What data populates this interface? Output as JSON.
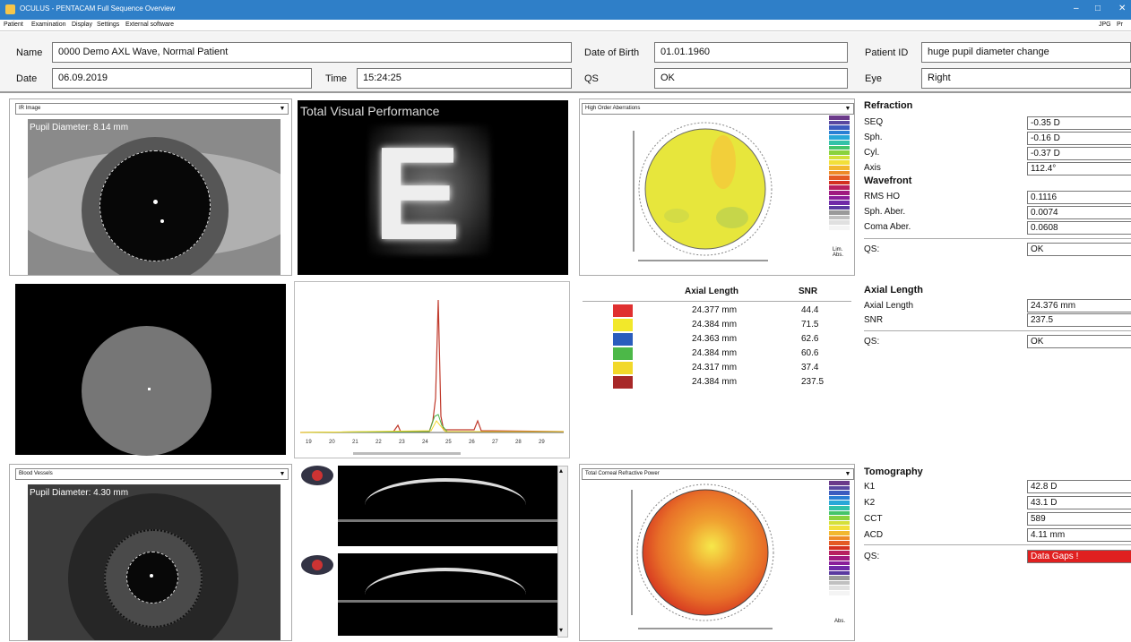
{
  "window": {
    "title": "OCULUS - PENTACAM Full Sequence Overview"
  },
  "menu": [
    "Patient",
    "Examination",
    "Display",
    "Settings",
    "External software"
  ],
  "menu_right": [
    "JPG",
    "Pr"
  ],
  "patient": {
    "name_label": "Name",
    "name": "0000 Demo AXL Wave, Normal Patient",
    "dob_label": "Date of Birth",
    "dob": "01.01.1960",
    "id_label": "Patient ID",
    "id": "huge pupil diameter change",
    "date_label": "Date",
    "date": "06.09.2019",
    "time_label": "Time",
    "time": "15:24:25",
    "qs_label": "QS",
    "qs": "OK",
    "eye_label": "Eye",
    "eye": "Right"
  },
  "row1": {
    "ir_dropdown": "IR Image",
    "pupil": "Pupil Diameter: 8.14 mm",
    "tvp_title": "Total Visual Performance",
    "tvp_letter": "E",
    "hoa_dropdown": "High Order Aberrations",
    "scale_label": "Lim. Abs."
  },
  "refraction": {
    "title": "Refraction",
    "rows": [
      {
        "label": "SEQ",
        "value": "-0.35 D"
      },
      {
        "label": "Sph.",
        "value": "-0.16 D"
      },
      {
        "label": "Cyl.",
        "value": "-0.37 D"
      },
      {
        "label": "Axis",
        "value": "112.4°"
      }
    ],
    "wf_title": "Wavefront",
    "wf_rows": [
      {
        "label": "RMS HO",
        "value": "0.1116"
      },
      {
        "label": "Sph. Aber.",
        "value": "0.0074"
      },
      {
        "label": "Coma Aber.",
        "value": "0.0608"
      }
    ],
    "qs_label": "QS:",
    "qs": "OK"
  },
  "axial_table": {
    "col1": "Axial Length",
    "col2": "SNR",
    "rows": [
      {
        "color": "#e03030",
        "len": "24.377 mm",
        "snr": "44.4"
      },
      {
        "color": "#f2e82a",
        "len": "24.384 mm",
        "snr": "71.5"
      },
      {
        "color": "#2a5dbd",
        "len": "24.363 mm",
        "snr": "62.6"
      },
      {
        "color": "#4cb848",
        "len": "24.384 mm",
        "snr": "60.6"
      },
      {
        "color": "#f2d82a",
        "len": "24.317 mm",
        "snr": "37.4"
      },
      {
        "color": "#a82828",
        "len": "24.384 mm",
        "snr": "237.5"
      }
    ]
  },
  "axial": {
    "title": "Axial Length",
    "rows": [
      {
        "label": "Axial Length",
        "value": "24.376 mm"
      },
      {
        "label": "SNR",
        "value": "237.5"
      }
    ],
    "qs_label": "QS:",
    "qs": "OK"
  },
  "signal_axis": [
    "19",
    "20",
    "21",
    "22",
    "23",
    "24",
    "25",
    "26",
    "27",
    "28",
    "29"
  ],
  "row3": {
    "bv_dropdown": "Blood Vessels",
    "pupil": "Pupil Diameter: 4.30 mm",
    "tcrp_dropdown": "Total Corneal Refractive Power",
    "scale_label": "Abs."
  },
  "tomography": {
    "title": "Tomography",
    "rows": [
      {
        "label": "K1",
        "value": "42.8 D"
      },
      {
        "label": "K2",
        "value": "43.1 D"
      },
      {
        "label": "CCT",
        "value": "589"
      },
      {
        "label": "ACD",
        "value": "4.11 mm"
      }
    ],
    "qs_label": "QS:",
    "qs": "Data Gaps !",
    "qs_color": "#e02020"
  },
  "colors": {
    "titlebar": "#2f7fc8",
    "error": "#e02020"
  }
}
